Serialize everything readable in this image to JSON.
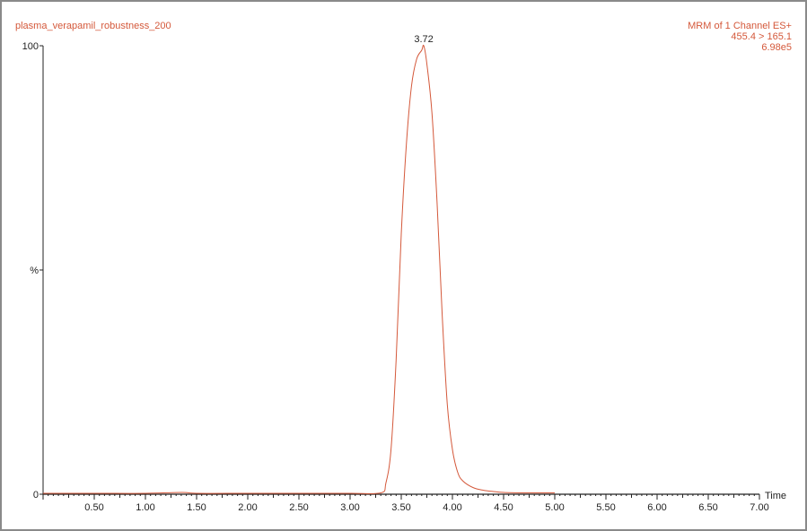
{
  "header": {
    "sample_name": "plasma_verapamil_robustness_200",
    "experiment": "MRM of 1 Channel ES+",
    "transition": "455.4 > 165.1",
    "intensity": "6.98e5"
  },
  "colors": {
    "trace": "#d4583a",
    "axis": "#222222",
    "labels_accent": "#d4583a",
    "border": "#8a8a8a"
  },
  "chart_data": {
    "type": "line",
    "title": "plasma_verapamil_robustness_200",
    "xlabel": "Time",
    "ylabel": "%",
    "xlim": [
      0,
      7.0
    ],
    "ylim": [
      0,
      100
    ],
    "x_ticks": [
      "0.50",
      "1.00",
      "1.50",
      "2.00",
      "2.50",
      "3.00",
      "3.50",
      "4.00",
      "4.50",
      "5.00",
      "5.50",
      "6.00",
      "6.50",
      "7.00"
    ],
    "y_ticks": [
      "0",
      "%",
      "100"
    ],
    "grid": false,
    "series": [
      {
        "x": [
          0.0,
          0.5,
          1.0,
          1.36,
          1.5,
          2.0,
          2.5,
          3.0,
          3.3,
          3.35,
          3.4,
          3.45,
          3.5,
          3.55,
          3.6,
          3.65,
          3.7,
          3.72,
          3.75,
          3.8,
          3.85,
          3.9,
          3.95,
          4.0,
          4.05,
          4.1,
          4.2,
          4.3,
          4.4,
          4.5,
          4.7,
          5.0
        ],
        "y": [
          0.2,
          0.2,
          0.2,
          0.4,
          0.2,
          0.2,
          0.2,
          0.2,
          0.3,
          2.5,
          10,
          30,
          58,
          78,
          91,
          97,
          99,
          100,
          96,
          85,
          65,
          40,
          20,
          10,
          5,
          3,
          1.5,
          0.9,
          0.6,
          0.4,
          0.3,
          0.3
        ]
      }
    ],
    "annotations": [
      {
        "x": 3.72,
        "y": 100,
        "text": "3.72"
      }
    ]
  }
}
